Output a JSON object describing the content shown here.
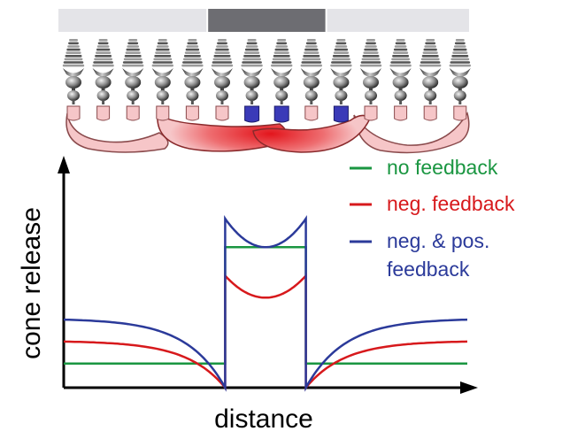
{
  "colors": {
    "no_feedback": "#1a9641",
    "neg_feedback": "#d7191c",
    "neg_pos_feedback": "#2b3a9a",
    "stimulus_light": "#e4e4e8",
    "stimulus_dark": "#6d6d72",
    "horizontal_cell_pink": "#f6c6c8",
    "horizontal_cell_red": "#e0242a",
    "feedback_terminal_blue": "#3a3ab8"
  },
  "axes": {
    "ylabel": "cone release",
    "xlabel": "distance"
  },
  "legend": {
    "entries": [
      {
        "key": "no_feedback",
        "lines": [
          "no feedback"
        ]
      },
      {
        "key": "neg_feedback",
        "lines": [
          "neg. feedback"
        ]
      },
      {
        "key": "neg_pos_feedback",
        "lines": [
          "neg. & pos.",
          "feedback"
        ]
      }
    ]
  },
  "stimulus_bar": {
    "segments": [
      {
        "shade": "light",
        "cone_span": [
          1,
          5
        ]
      },
      {
        "shade": "dark",
        "cone_span": [
          6,
          9
        ]
      },
      {
        "shade": "light",
        "cone_span": [
          10,
          14
        ]
      }
    ]
  },
  "cones": {
    "count": 14,
    "terminals": [
      "pink",
      "pink",
      "pink",
      "pink",
      "pink",
      "pink",
      "blue",
      "blue",
      "pink",
      "blue",
      "pink",
      "pink",
      "pink",
      "pink"
    ]
  },
  "chart_data": {
    "type": "line",
    "x_range": [
      0,
      10
    ],
    "y_range": [
      0,
      10
    ],
    "center_region": [
      4.0,
      6.0
    ],
    "series": [
      {
        "key": "no_feedback",
        "name": "no feedback",
        "surround_level": 1.1,
        "center_level": 6.4
      },
      {
        "key": "neg_feedback",
        "name": "neg. feedback",
        "surround_level": 2.1,
        "edge_level": 0.0,
        "center_edge_level": 5.1,
        "center_mid_level": 4.1
      },
      {
        "key": "neg_pos_feedback",
        "name": "neg. & pos. feedback",
        "surround_level": 3.1,
        "edge_level": 0.0,
        "center_edge_level": 7.7,
        "center_mid_level": 6.4
      }
    ]
  }
}
